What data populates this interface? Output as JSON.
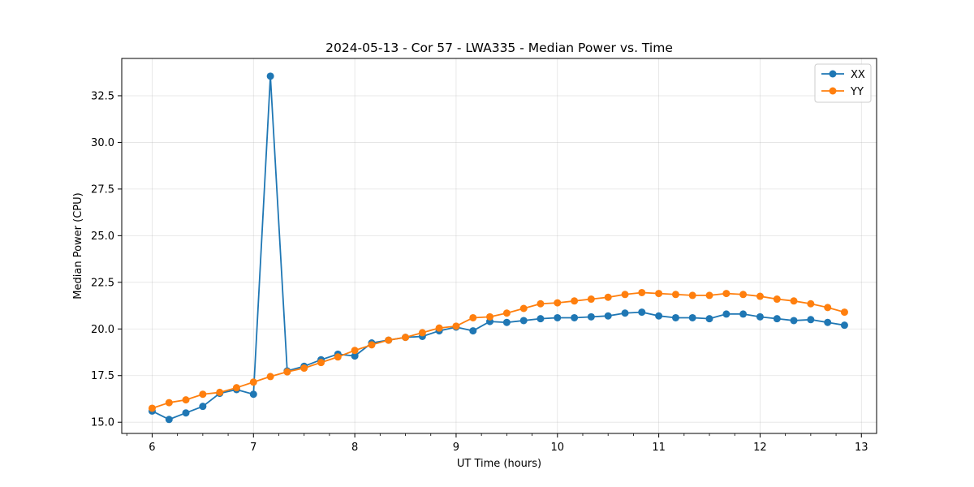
{
  "chart_data": {
    "type": "line",
    "title": "2024-05-13 - Cor 57 - LWA335 - Median Power vs. Time",
    "xlabel": "UT Time (hours)",
    "ylabel": "Median Power (CPU)",
    "xlim": [
      5.7,
      13.15
    ],
    "ylim": [
      14.4,
      34.5
    ],
    "xticks": [
      6,
      7,
      8,
      9,
      10,
      11,
      12,
      13
    ],
    "xtick_labels": [
      "6",
      "7",
      "8",
      "9",
      "10",
      "11",
      "12",
      "13"
    ],
    "yticks": [
      15.0,
      17.5,
      20.0,
      22.5,
      25.0,
      27.5,
      30.0,
      32.5
    ],
    "ytick_labels": [
      "15.0",
      "17.5",
      "20.0",
      "22.5",
      "25.0",
      "27.5",
      "30.0",
      "32.5"
    ],
    "grid": true,
    "legend_position": "top-right",
    "x": [
      6.0,
      6.167,
      6.333,
      6.5,
      6.667,
      6.833,
      7.0,
      7.167,
      7.333,
      7.5,
      7.667,
      7.833,
      8.0,
      8.167,
      8.333,
      8.5,
      8.667,
      8.833,
      9.0,
      9.167,
      9.333,
      9.5,
      9.667,
      9.833,
      10.0,
      10.167,
      10.333,
      10.5,
      10.667,
      10.833,
      11.0,
      11.167,
      11.333,
      11.5,
      11.667,
      11.833,
      12.0,
      12.167,
      12.333,
      12.5,
      12.667,
      12.833
    ],
    "series": [
      {
        "name": "XX",
        "color": "#1f77b4",
        "values": [
          15.6,
          15.15,
          15.5,
          15.85,
          16.55,
          16.75,
          16.5,
          33.55,
          17.75,
          18.0,
          18.35,
          18.65,
          18.55,
          19.25,
          19.4,
          19.55,
          19.6,
          19.9,
          20.1,
          19.9,
          20.4,
          20.35,
          20.45,
          20.55,
          20.6,
          20.6,
          20.65,
          20.7,
          20.85,
          20.9,
          20.7,
          20.6,
          20.6,
          20.55,
          20.8,
          20.8,
          20.65,
          20.55,
          20.45,
          20.5,
          20.35,
          20.2
        ]
      },
      {
        "name": "YY",
        "color": "#ff7f0e",
        "values": [
          15.75,
          16.05,
          16.2,
          16.5,
          16.6,
          16.85,
          17.15,
          17.45,
          17.7,
          17.9,
          18.2,
          18.5,
          18.85,
          19.15,
          19.4,
          19.55,
          19.8,
          20.05,
          20.15,
          20.6,
          20.65,
          20.85,
          21.1,
          21.35,
          21.4,
          21.5,
          21.6,
          21.7,
          21.85,
          21.95,
          21.9,
          21.85,
          21.8,
          21.8,
          21.9,
          21.85,
          21.75,
          21.6,
          21.5,
          21.35,
          21.15,
          20.9
        ]
      }
    ]
  }
}
